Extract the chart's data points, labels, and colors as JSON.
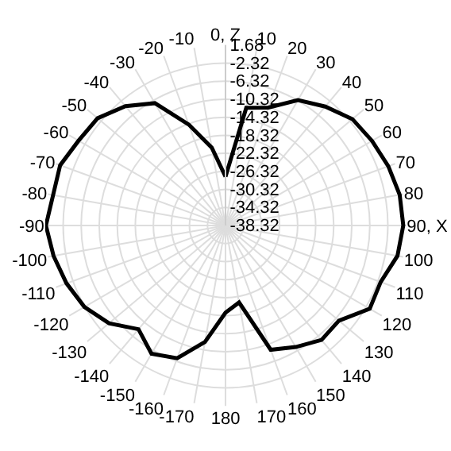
{
  "chart_data": {
    "type": "radar",
    "categories": [
      "0, Z",
      "10",
      "20",
      "30",
      "40",
      "50",
      "60",
      "70",
      "80",
      "90, X",
      "100",
      "110",
      "120",
      "130",
      "140",
      "150",
      "160",
      "170",
      "180",
      "-170",
      "-160",
      "-150",
      "-140",
      "-130",
      "-120",
      "-110",
      "-100",
      "-90",
      "-80",
      "-70",
      "-60",
      "-50",
      "-40",
      "-30",
      "-20",
      "-10"
    ],
    "series": [
      {
        "color": "#000000",
        "marker": "none",
        "values": [
          -27.5,
          -11.8,
          -10.5,
          -6.2,
          -3.9,
          -1.6,
          -0.8,
          0.1,
          0.9,
          1.1,
          0.4,
          -1.7,
          -1.4,
          -5.5,
          -5.2,
          -7.2,
          -9,
          -21,
          -19,
          -12.1,
          -7,
          -5.5,
          -8.3,
          -4.6,
          -2.2,
          -0.8,
          0.4,
          1.5,
          0.5,
          0.7,
          -0.7,
          -1.3,
          -3.8,
          -7,
          -14.5,
          -20.8
        ]
      }
    ],
    "ylim": [
      -38.32,
      1.68
    ],
    "yticks": [
      1.68,
      -2.32,
      -6.32,
      -10.32,
      -14.32,
      -18.32,
      -22.32,
      -26.32,
      -30.32,
      -34.32,
      -38.32
    ],
    "grid": true
  }
}
